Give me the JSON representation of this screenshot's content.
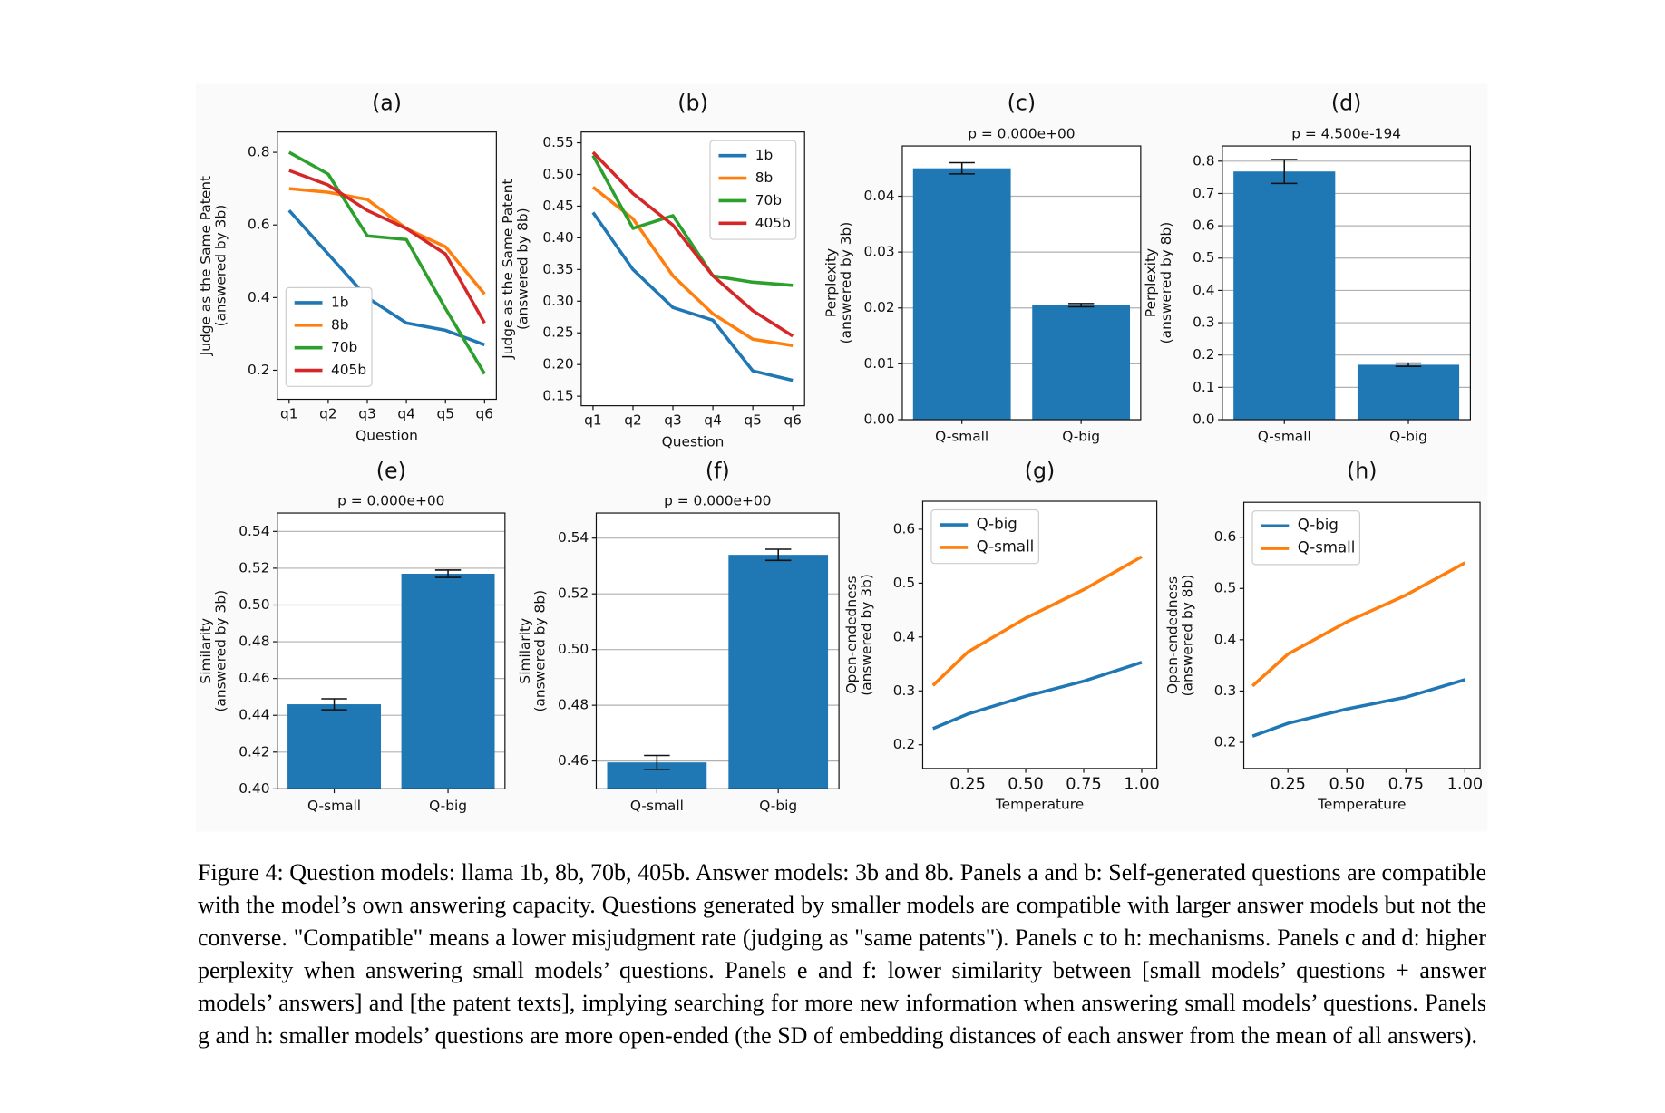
{
  "chart_data": [
    {
      "type": "line",
      "panel": "(a)",
      "xlabel": "Question",
      "ylabel": [
        "Judge as the Same Patent",
        "(answered by 3b)"
      ],
      "categories": [
        "q1",
        "q2",
        "q3",
        "q4",
        "q5",
        "q6"
      ],
      "ylim": [
        0.12,
        0.856
      ],
      "yticks": [
        0.2,
        0.4,
        0.6,
        0.8
      ],
      "legend": "lower left",
      "series": [
        {
          "name": "1b",
          "color": "#1f77b4",
          "values": [
            0.64,
            0.52,
            0.4,
            0.33,
            0.31,
            0.27
          ]
        },
        {
          "name": "8b",
          "color": "#ff7f0e",
          "values": [
            0.7,
            0.69,
            0.67,
            0.59,
            0.54,
            0.41
          ]
        },
        {
          "name": "70b",
          "color": "#2ca02c",
          "values": [
            0.8,
            0.74,
            0.57,
            0.56,
            0.37,
            0.19
          ]
        },
        {
          "name": "405b",
          "color": "#d62728",
          "values": [
            0.75,
            0.71,
            0.64,
            0.59,
            0.52,
            0.33
          ]
        }
      ]
    },
    {
      "type": "line",
      "panel": "(b)",
      "xlabel": "Question",
      "ylabel": [
        "Judge as the Same Patent",
        "(answered by 8b)"
      ],
      "categories": [
        "q1",
        "q2",
        "q3",
        "q4",
        "q5",
        "q6"
      ],
      "ylim": [
        0.135,
        0.567
      ],
      "yticks": [
        0.15,
        {
          "value": 0.2,
          "label": "0.20"
        },
        0.25,
        {
          "value": 0.3,
          "label": "0.30"
        },
        0.35,
        {
          "value": 0.4,
          "label": "0.40"
        },
        0.45,
        {
          "value": 0.5,
          "label": "0.50"
        },
        0.55
      ],
      "legend": "upper right",
      "series": [
        {
          "name": "1b",
          "color": "#1f77b4",
          "values": [
            0.44,
            0.35,
            0.29,
            0.27,
            0.19,
            0.175
          ]
        },
        {
          "name": "8b",
          "color": "#ff7f0e",
          "values": [
            0.48,
            0.43,
            0.34,
            0.28,
            0.24,
            0.23
          ]
        },
        {
          "name": "70b",
          "color": "#2ca02c",
          "values": [
            0.53,
            0.415,
            0.435,
            0.34,
            0.33,
            0.325
          ]
        },
        {
          "name": "405b",
          "color": "#d62728",
          "values": [
            0.535,
            0.47,
            0.42,
            0.34,
            0.285,
            0.245
          ]
        }
      ]
    },
    {
      "type": "bar",
      "panel": "(c)",
      "title": "p = 0.000e+00",
      "ylabel": [
        "Perplexity",
        "(answered by 3b)"
      ],
      "categories": [
        "Q-small",
        "Q-big"
      ],
      "values": [
        0.045,
        0.0205
      ],
      "errors": [
        0.001,
        0.0003
      ],
      "color": "#1f77b4",
      "grid": true,
      "ylim": [
        0,
        0.049
      ],
      "yticks": [
        {
          "value": 0,
          "label": "0.00"
        },
        {
          "value": 0.01,
          "label": "0.01"
        },
        {
          "value": 0.02,
          "label": "0.02"
        },
        {
          "value": 0.03,
          "label": "0.03"
        },
        {
          "value": 0.04,
          "label": "0.04"
        }
      ]
    },
    {
      "type": "bar",
      "panel": "(d)",
      "title": "p = 4.500e-194",
      "ylabel": [
        "Perplexity",
        "(answered by 8b)"
      ],
      "categories": [
        "Q-small",
        "Q-big"
      ],
      "values": [
        0.768,
        0.17
      ],
      "errors": [
        0.037,
        0.005
      ],
      "color": "#1f77b4",
      "grid": true,
      "ylim": [
        0,
        0.847
      ],
      "yticks": [
        {
          "value": 0,
          "label": "0.0"
        },
        0.1,
        0.2,
        0.3,
        0.4,
        0.5,
        0.6,
        0.7,
        0.8
      ]
    },
    {
      "type": "bar",
      "panel": "(e)",
      "title": "p = 0.000e+00",
      "ylabel": [
        "Similarity",
        "(answered by 3b)"
      ],
      "categories": [
        "Q-small",
        "Q-big"
      ],
      "values": [
        0.446,
        0.517
      ],
      "errors": [
        0.003,
        0.002
      ],
      "color": "#1f77b4",
      "grid": true,
      "ylim": [
        0.4,
        0.55
      ],
      "yticks": [
        {
          "value": 0.4,
          "label": "0.40"
        },
        0.42,
        0.44,
        0.46,
        0.48,
        {
          "value": 0.5,
          "label": "0.50"
        },
        0.52,
        0.54
      ]
    },
    {
      "type": "bar",
      "panel": "(f)",
      "title": "p = 0.000e+00",
      "ylabel": [
        "Similarity",
        "(answered by 8b)"
      ],
      "categories": [
        "Q-small",
        "Q-big"
      ],
      "values": [
        0.4595,
        0.534
      ],
      "errors": [
        0.0025,
        0.002
      ],
      "color": "#1f77b4",
      "grid": true,
      "ylim": [
        0.45,
        0.549
      ],
      "yticks": [
        0.46,
        0.48,
        {
          "value": 0.5,
          "label": "0.50"
        },
        0.52,
        0.54
      ]
    },
    {
      "type": "line",
      "panel": "(g)",
      "xlabel": "Temperature",
      "ylabel": [
        "Open-endedness",
        "(answered by 3b)"
      ],
      "x": [
        0.1,
        0.25,
        0.5,
        0.75,
        1.0
      ],
      "xlim": [
        0.056,
        1.065
      ],
      "xticks": [
        0.25,
        {
          "value": 0.5,
          "label": "0.50"
        },
        0.75,
        {
          "value": 1.0,
          "label": "1.00"
        }
      ],
      "ylim": [
        0.156,
        0.652
      ],
      "yticks": [
        0.2,
        0.3,
        0.4,
        0.5,
        0.6
      ],
      "legend": "upper left",
      "series": [
        {
          "name": "Q-big",
          "color": "#1f77b4",
          "values": [
            0.23,
            0.257,
            0.29,
            0.318,
            0.353
          ]
        },
        {
          "name": "Q-small",
          "color": "#ff7f0e",
          "values": [
            0.31,
            0.372,
            0.435,
            0.488,
            0.549
          ]
        }
      ]
    },
    {
      "type": "line",
      "panel": "(h)",
      "xlabel": "Temperature",
      "ylabel": [
        "Open-endedness",
        "(answered by 8b)"
      ],
      "x": [
        0.1,
        0.25,
        0.5,
        0.75,
        1.0
      ],
      "xlim": [
        0.063,
        1.064
      ],
      "xticks": [
        0.25,
        {
          "value": 0.5,
          "label": "0.50"
        },
        0.75,
        {
          "value": 1.0,
          "label": "1.00"
        }
      ],
      "ylim": [
        0.149,
        0.668
      ],
      "yticks": [
        0.2,
        0.3,
        0.4,
        0.5,
        0.6
      ],
      "legend": "upper left",
      "series": [
        {
          "name": "Q-big",
          "color": "#1f77b4",
          "values": [
            0.212,
            0.237,
            0.265,
            0.288,
            0.322
          ]
        },
        {
          "name": "Q-small",
          "color": "#ff7f0e",
          "values": [
            0.31,
            0.372,
            0.435,
            0.487,
            0.55
          ]
        }
      ]
    }
  ],
  "caption": "Figure 4: Question models: llama 1b, 8b, 70b, 405b. Answer models: 3b and 8b. Panels a and b: Self-generated questions are compatible with the model’s own answering capacity. Questions generated by smaller models are compatible with larger answer models but not the converse. \"Compatible\" means a lower misjudgment rate (judging as \"same patents\"). Panels c to h: mechanisms. Panels c and d: higher perplexity when answering small models’ questions. Panels e and f: lower similarity between [small models’ questions + answer models’ answers] and [the patent texts], implying searching for more new information when answering small models’ questions. Panels g and h: smaller models’ questions are more open-ended (the SD of embedding distances of each answer from the mean of all answers)."
}
